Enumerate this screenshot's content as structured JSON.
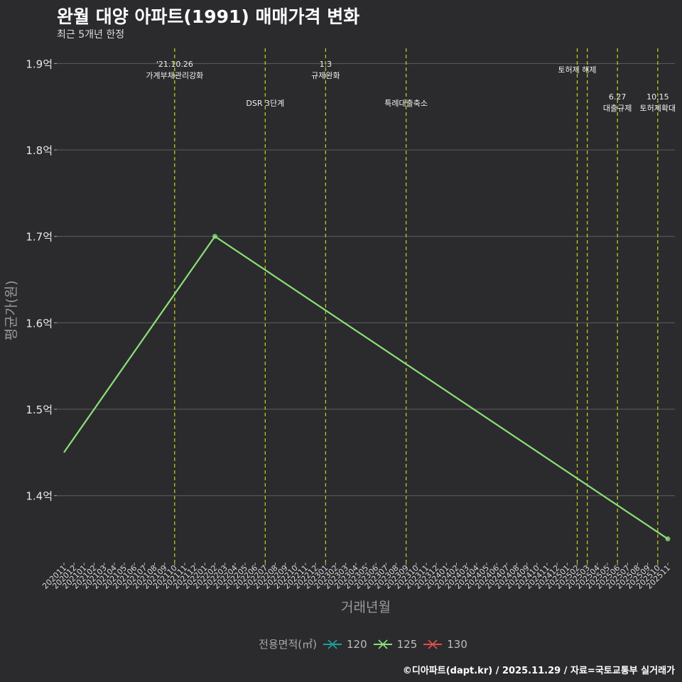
{
  "title": "완월 대양 아파트(1991) 매매가격 변화",
  "subtitle": "최근 5개년 한정",
  "caption": "©디아파트(dapt.kr) / 2025.11.29 / 자료=국토교통부 실거래가",
  "colors": {
    "background": "#2b2b2d",
    "grid": "#5e5e5e",
    "event_line": "#c8d21e",
    "series_120": "#1f9e9a",
    "series_125": "#8ce07a",
    "series_130": "#e05050"
  },
  "legend": {
    "title": "전용면적(㎡)",
    "items": [
      {
        "label": "120",
        "color": "#1f9e9a"
      },
      {
        "label": "125",
        "color": "#8ce07a"
      },
      {
        "label": "130",
        "color": "#e05050"
      }
    ]
  },
  "chart_data": {
    "type": "line",
    "xlabel": "거래년월",
    "ylabel": "평균가(원)",
    "categories": [
      "202011",
      "202012",
      "202101",
      "202102",
      "202103",
      "202104",
      "202105",
      "202106",
      "202107",
      "202108",
      "202109",
      "202110",
      "202111",
      "202112",
      "202201",
      "202202",
      "202203",
      "202204",
      "202205",
      "202206",
      "202207",
      "202208",
      "202209",
      "202210",
      "202211",
      "202212",
      "202301",
      "202302",
      "202303",
      "202304",
      "202305",
      "202306",
      "202307",
      "202308",
      "202309",
      "202310",
      "202311",
      "202312",
      "202401",
      "202402",
      "202403",
      "202404",
      "202405",
      "202406",
      "202407",
      "202408",
      "202409",
      "202410",
      "202411",
      "202412",
      "202501",
      "202502",
      "202503",
      "202504",
      "202505",
      "202506",
      "202507",
      "202508",
      "202509",
      "202510",
      "202511"
    ],
    "yticks": [
      {
        "value": 1.4,
        "label": "1.4억"
      },
      {
        "value": 1.5,
        "label": "1.5억"
      },
      {
        "value": 1.6,
        "label": "1.6억"
      },
      {
        "value": 1.7,
        "label": "1.7억"
      },
      {
        "value": 1.8,
        "label": "1.8억"
      },
      {
        "value": 1.9,
        "label": "1.9억"
      }
    ],
    "ylim": [
      1.3225,
      1.9225
    ],
    "y_unit": "억",
    "series": [
      {
        "name": "125",
        "color": "#8ce07a",
        "points": [
          {
            "x": "202011",
            "y": 1.45,
            "marker": false
          },
          {
            "x": "202202",
            "y": 1.7,
            "marker": true
          },
          {
            "x": "202511",
            "y": 1.35,
            "marker": true
          }
        ]
      }
    ],
    "events": [
      {
        "x": "202110",
        "lines": [
          "'21.10.26",
          "가계부채관리강화"
        ],
        "row": 0
      },
      {
        "x": "202207",
        "lines": [
          "DSR 3단계"
        ],
        "row": 2
      },
      {
        "x": "202301",
        "lines": [
          "1.3",
          "규제완화"
        ],
        "row": 0
      },
      {
        "x": "202309",
        "lines": [
          "특례대출축소"
        ],
        "row": 2
      },
      {
        "x": "202502",
        "lines": [
          "토허제 해제"
        ],
        "row": 1
      },
      {
        "x": "202503",
        "lines": [],
        "row": 1
      },
      {
        "x": "202506",
        "lines": [
          "6.27",
          "대출규제"
        ],
        "row": 3
      },
      {
        "x": "202510",
        "lines": [
          "10.15",
          "토허제확대"
        ],
        "row": 3
      }
    ]
  }
}
